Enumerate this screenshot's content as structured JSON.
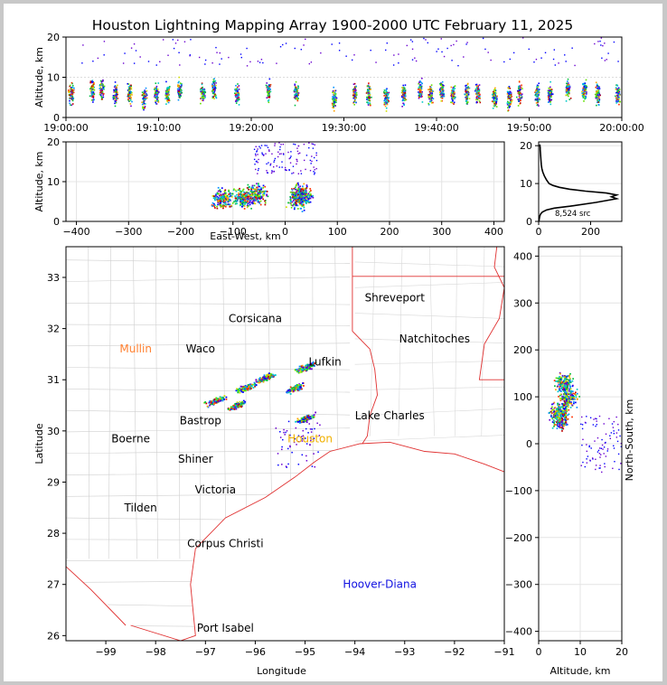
{
  "chart_data": [
    {
      "type": "scatter",
      "panel": "time-altitude",
      "title": "Houston Lightning Mapping Array 1900-2000 UTC February 11, 2025",
      "xlabel": "",
      "ylabel": "Altitude, km",
      "ylim": [
        0,
        20
      ],
      "yticks": [
        "0",
        "10",
        "20"
      ],
      "xticks": [
        "19:00:00",
        "19:10:00",
        "19:20:00",
        "19:30:00",
        "19:40:00",
        "19:50:00",
        "20:00:00"
      ],
      "grid": true,
      "clusters": [
        {
          "t": 0.5,
          "alt": 6
        },
        {
          "t": 2.8,
          "alt": 7
        },
        {
          "t": 3.8,
          "alt": 7
        },
        {
          "t": 5.3,
          "alt": 6
        },
        {
          "t": 6.8,
          "alt": 6
        },
        {
          "t": 8.4,
          "alt": 5
        },
        {
          "t": 9.7,
          "alt": 6
        },
        {
          "t": 10.9,
          "alt": 6
        },
        {
          "t": 12.2,
          "alt": 7
        },
        {
          "t": 14.7,
          "alt": 6
        },
        {
          "t": 15.9,
          "alt": 7
        },
        {
          "t": 18.4,
          "alt": 6
        },
        {
          "t": 21.8,
          "alt": 7
        },
        {
          "t": 24.8,
          "alt": 6
        },
        {
          "t": 28.9,
          "alt": 5
        },
        {
          "t": 31.1,
          "alt": 6
        },
        {
          "t": 32.6,
          "alt": 6
        },
        {
          "t": 34.5,
          "alt": 5
        },
        {
          "t": 36.4,
          "alt": 6
        },
        {
          "t": 38.2,
          "alt": 7
        },
        {
          "t": 39.3,
          "alt": 6
        },
        {
          "t": 40.5,
          "alt": 7
        },
        {
          "t": 41.7,
          "alt": 6
        },
        {
          "t": 43.2,
          "alt": 6
        },
        {
          "t": 44.4,
          "alt": 6
        },
        {
          "t": 46.2,
          "alt": 5
        },
        {
          "t": 47.8,
          "alt": 5
        },
        {
          "t": 48.9,
          "alt": 6
        },
        {
          "t": 50.8,
          "alt": 6
        },
        {
          "t": 52.2,
          "alt": 6
        },
        {
          "t": 54.1,
          "alt": 7
        },
        {
          "t": 55.9,
          "alt": 7
        },
        {
          "t": 57.3,
          "alt": 6
        },
        {
          "t": 59.5,
          "alt": 6
        }
      ]
    },
    {
      "type": "scatter",
      "panel": "east-west-altitude",
      "xlabel": "East-West, km",
      "ylabel": "Altitude, km",
      "xlim": [
        -420,
        420
      ],
      "ylim": [
        0,
        20
      ],
      "xticks": [
        "−400",
        "−300",
        "−200",
        "−100",
        "0",
        "100",
        "200",
        "300",
        "400"
      ],
      "yticks": [
        "0",
        "10",
        "20"
      ],
      "grid": true,
      "clusters": [
        {
          "x": -120,
          "alt": 6
        },
        {
          "x": -80,
          "alt": 6
        },
        {
          "x": -55,
          "alt": 7
        },
        {
          "x": 25,
          "alt": 6
        },
        {
          "x": 30,
          "alt": 7
        }
      ]
    },
    {
      "type": "line",
      "panel": "altitude-histogram",
      "xlim": [
        0,
        320
      ],
      "ylim": [
        0,
        21
      ],
      "xticks": [
        "0",
        "200"
      ],
      "yticks": [
        "0",
        "10",
        "20"
      ],
      "annotation": "8,524 src",
      "x": [
        1,
        2,
        3,
        5,
        8,
        15,
        30,
        60,
        120,
        220,
        300,
        280,
        300,
        260,
        180,
        120,
        80,
        55,
        40,
        30,
        22,
        16,
        12,
        10,
        9,
        8,
        7,
        6,
        6,
        5,
        5
      ],
      "y": [
        0,
        0.5,
        1,
        1.5,
        2,
        2.5,
        3,
        3.5,
        4,
        5,
        6,
        6.5,
        7,
        7.5,
        8,
        8.5,
        9,
        9.5,
        10,
        11,
        12,
        13,
        14,
        15,
        16,
        17,
        18,
        19,
        19.5,
        20,
        20.3
      ]
    },
    {
      "type": "scatter",
      "panel": "map",
      "xlabel": "Longitude",
      "ylabel": "Latitude",
      "xlim": [
        -99.8,
        -91
      ],
      "ylim": [
        25.9,
        33.6
      ],
      "xticks": [
        "−99",
        "−98",
        "−97",
        "−96",
        "−95",
        "−94",
        "−93",
        "−92",
        "−91"
      ],
      "yticks": [
        "26",
        "27",
        "28",
        "29",
        "30",
        "31",
        "32",
        "33"
      ],
      "cities": [
        {
          "name": "Shreveport",
          "lon": -93.2,
          "lat": 32.6,
          "color": "#000000"
        },
        {
          "name": "Corsicana",
          "lon": -96.0,
          "lat": 32.2,
          "color": "#000000"
        },
        {
          "name": "Natchitoches",
          "lon": -92.4,
          "lat": 31.8,
          "color": "#000000"
        },
        {
          "name": "Mullin",
          "lon": -98.4,
          "lat": 31.6,
          "color": "#ff8030"
        },
        {
          "name": "Waco",
          "lon": -97.1,
          "lat": 31.6,
          "color": "#000000"
        },
        {
          "name": "Lufkin",
          "lon": -94.6,
          "lat": 31.35,
          "color": "#000000"
        },
        {
          "name": "Bastrop",
          "lon": -97.1,
          "lat": 30.2,
          "color": "#000000"
        },
        {
          "name": "Lake Charles",
          "lon": -93.3,
          "lat": 30.3,
          "color": "#000000"
        },
        {
          "name": "Boerne",
          "lon": -98.5,
          "lat": 29.85,
          "color": "#000000"
        },
        {
          "name": "Houston",
          "lon": -94.9,
          "lat": 29.85,
          "color": "#f0b000"
        },
        {
          "name": "Shiner",
          "lon": -97.2,
          "lat": 29.45,
          "color": "#000000"
        },
        {
          "name": "Victoria",
          "lon": -96.8,
          "lat": 28.85,
          "color": "#000000"
        },
        {
          "name": "Tilden",
          "lon": -98.3,
          "lat": 28.5,
          "color": "#000000"
        },
        {
          "name": "Corpus Christi",
          "lon": -96.6,
          "lat": 27.8,
          "color": "#000000"
        },
        {
          "name": "Hoover-Diana",
          "lon": -93.5,
          "lat": 27.0,
          "color": "#1010e0"
        },
        {
          "name": "Port Isabel",
          "lon": -96.6,
          "lat": 26.15,
          "color": "#000000"
        }
      ],
      "clusters": [
        {
          "lon": -96.8,
          "lat": 30.6
        },
        {
          "lon": -96.2,
          "lat": 30.85
        },
        {
          "lon": -95.8,
          "lat": 31.05
        },
        {
          "lon": -96.4,
          "lat": 30.5
        },
        {
          "lon": -95.0,
          "lat": 31.25
        },
        {
          "lon": -95.2,
          "lat": 30.85
        },
        {
          "lon": -95.0,
          "lat": 30.25
        }
      ]
    },
    {
      "type": "scatter",
      "panel": "altitude-north-south",
      "xlabel": "Altitude, km",
      "ylabel": "North-South, km",
      "xlim": [
        0,
        20
      ],
      "ylim": [
        -420,
        420
      ],
      "xticks": [
        "0",
        "10",
        "20"
      ],
      "yticks": [
        "−400",
        "−300",
        "−200",
        "−100",
        "0",
        "100",
        "200",
        "300",
        "400"
      ],
      "grid": true,
      "clusters": [
        {
          "alt": 6,
          "ns": 130
        },
        {
          "alt": 7,
          "ns": 100
        },
        {
          "alt": 5,
          "ns": 70
        },
        {
          "alt": 5,
          "ns": 52
        }
      ]
    }
  ]
}
